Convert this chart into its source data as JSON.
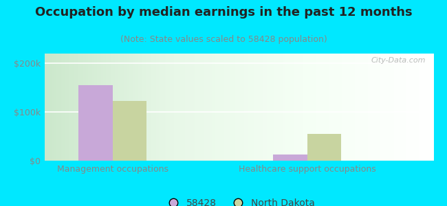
{
  "title": "Occupation by median earnings in the past 12 months",
  "subtitle": "(Note: State values scaled to 58428 population)",
  "categories": [
    "Management occupations",
    "Healthcare support occupations"
  ],
  "values_58428": [
    155000,
    13000
  ],
  "values_nd": [
    122000,
    55000
  ],
  "color_58428": "#c8a8d8",
  "color_nd": "#c8d4a0",
  "ylim": [
    0,
    220000
  ],
  "ytick_vals": [
    0,
    100000,
    200000
  ],
  "ytick_labels": [
    "$0",
    "$100k",
    "$200k"
  ],
  "legend_labels": [
    "58428",
    "North Dakota"
  ],
  "background_color": "#00e8ff",
  "bar_width": 0.35,
  "group_positions": [
    1.0,
    3.0
  ],
  "xlim": [
    0.3,
    4.3
  ],
  "title_fontsize": 13,
  "subtitle_fontsize": 9,
  "tick_fontsize": 9,
  "label_fontsize": 9
}
